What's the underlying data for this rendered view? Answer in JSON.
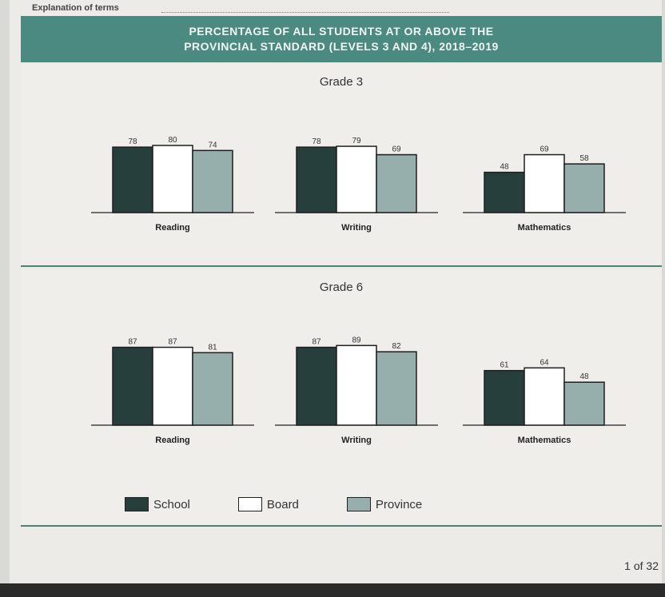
{
  "header": {
    "explanation_label": "Explanation of terms",
    "title_line1": "PERCENTAGE OF ALL STUDENTS AT OR ABOVE THE",
    "title_line2": "PROVINCIAL STANDARD (LEVELS 3 AND 4), 2018–2019"
  },
  "colors": {
    "school": "#263f3d",
    "board": "#ffffff",
    "province": "#96afad",
    "banner": "#4b8a80"
  },
  "legend": {
    "school": "School",
    "board": "Board",
    "province": "Province"
  },
  "page_number": "1 of 32",
  "chart_data": [
    {
      "type": "bar",
      "title": "Grade 3",
      "categories": [
        "Reading",
        "Writing",
        "Mathematics"
      ],
      "series": [
        {
          "name": "School",
          "values": [
            78,
            78,
            48
          ]
        },
        {
          "name": "Board",
          "values": [
            80,
            79,
            69
          ]
        },
        {
          "name": "Province",
          "values": [
            74,
            69,
            58
          ]
        }
      ],
      "ylim": [
        0,
        100
      ]
    },
    {
      "type": "bar",
      "title": "Grade 6",
      "categories": [
        "Reading",
        "Writing",
        "Mathematics"
      ],
      "series": [
        {
          "name": "School",
          "values": [
            87,
            87,
            61
          ]
        },
        {
          "name": "Board",
          "values": [
            87,
            89,
            64
          ]
        },
        {
          "name": "Province",
          "values": [
            81,
            82,
            48
          ]
        }
      ],
      "ylim": [
        0,
        100
      ]
    }
  ]
}
